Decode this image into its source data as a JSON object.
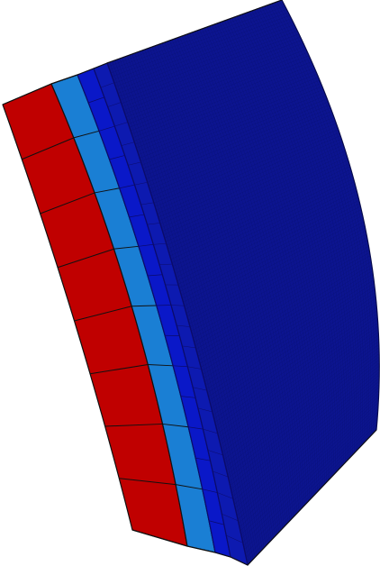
{
  "model": {
    "layers": [
      {
        "id": "outer",
        "color": "#c00000",
        "stroke": "#111111"
      },
      {
        "id": "mid",
        "color": "#1a7fd4",
        "stroke": "#111111"
      },
      {
        "id": "inner-a",
        "color": "#0a18c8",
        "stroke": "#0b0b6a"
      },
      {
        "id": "inner-b",
        "color": "#0d1ab0",
        "stroke": "#0b0b6a"
      },
      {
        "id": "core",
        "color": "#0c1490",
        "stroke": "#070a4a"
      }
    ],
    "background": "#ffffff"
  }
}
